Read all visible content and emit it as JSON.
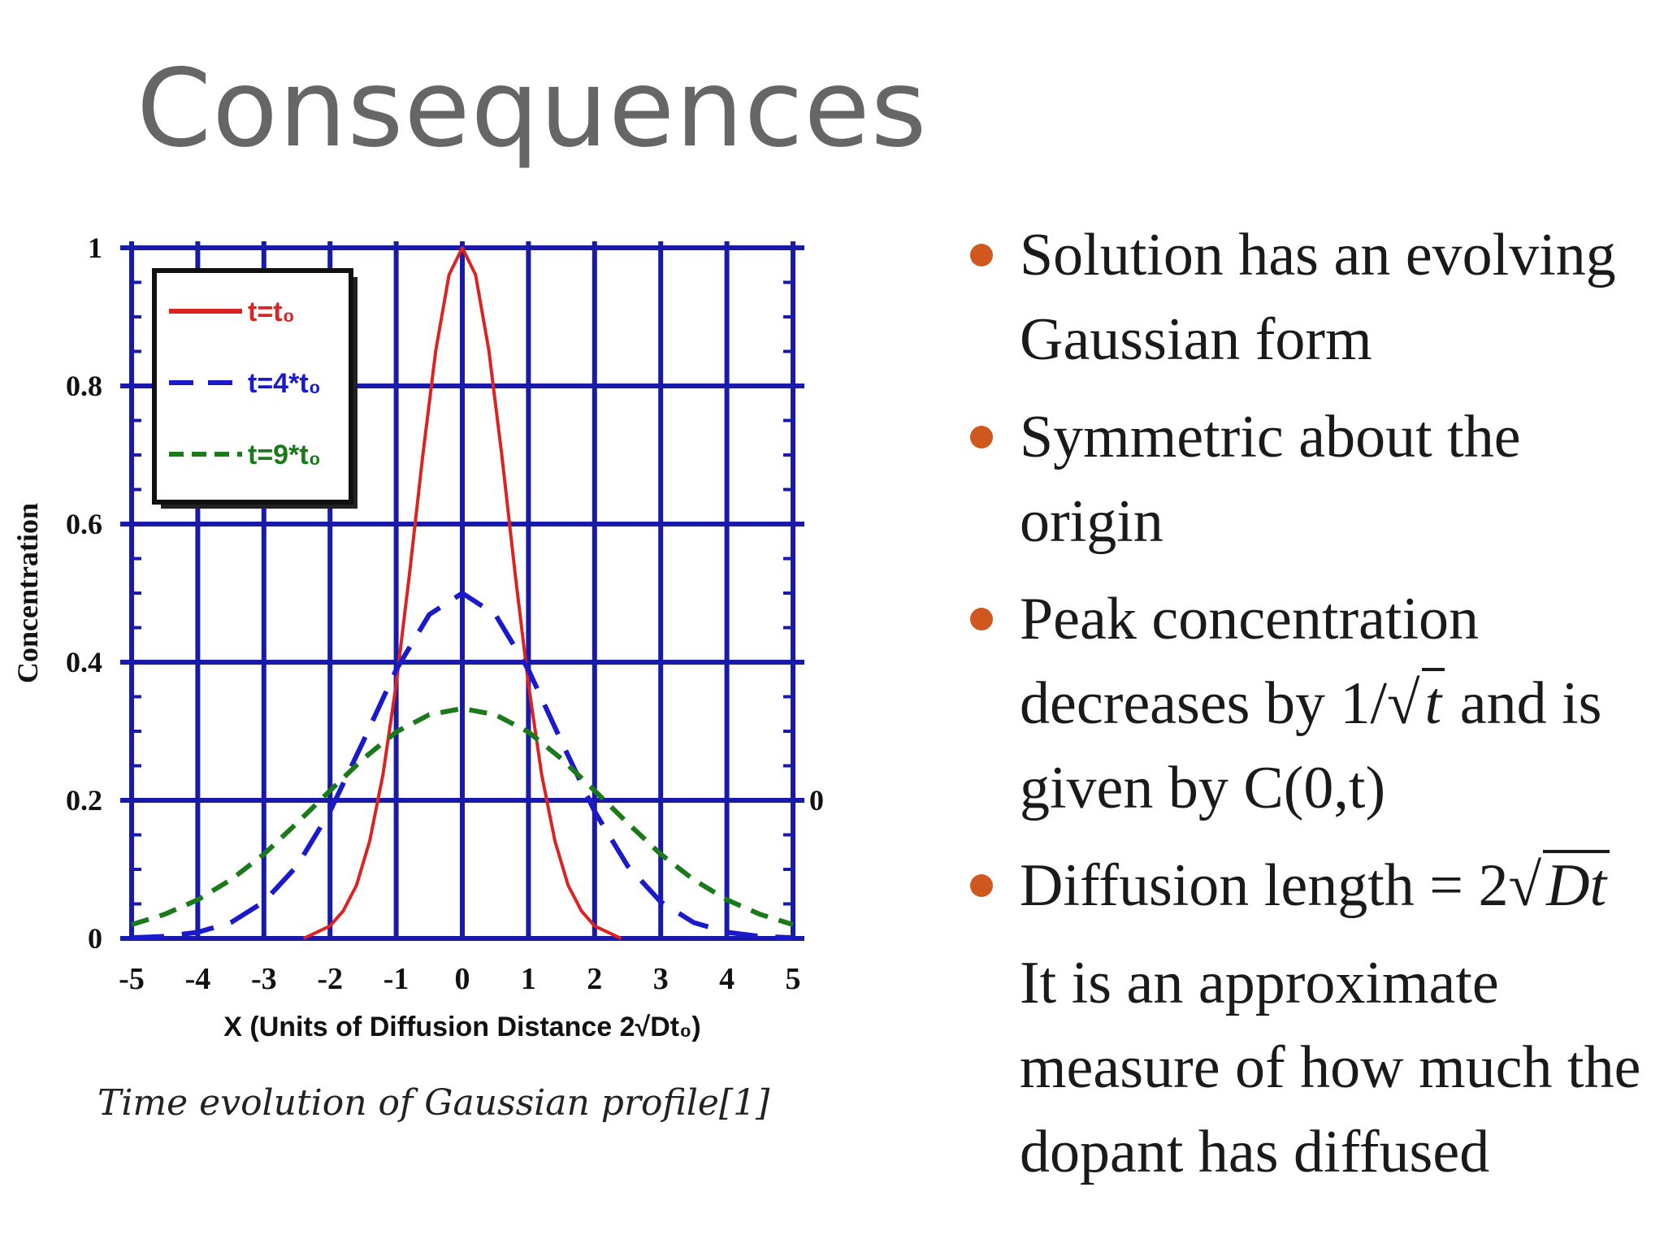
{
  "slide": {
    "title": "Consequences",
    "caption": "Time evolution of Gaussian profile[1]",
    "bullets": [
      {
        "text": "Solution has an evolving Gaussian form"
      },
      {
        "text": "Symmetric about the origin"
      },
      {
        "prefix": "Peak concentration decreases by ",
        "frac": "1/",
        "radicand": "t",
        "suffix": " and is given by C(0,t)"
      },
      {
        "prefix": "Diffusion length ",
        "eq": "= 2",
        "radicand": "Dt"
      }
    ],
    "note": "It is an approximate measure of how much the dopant has diffused",
    "bullet_color": "#d0581e"
  },
  "chart_data": {
    "type": "line",
    "xlabel": "X (Units of Diffusion Distance 2√Dt₀)",
    "ylabel": "Concentration",
    "xlim": [
      -5,
      5
    ],
    "ylim": [
      0,
      1
    ],
    "xticks": [
      "-5",
      "-4",
      "-3",
      "-2",
      "-1",
      "0",
      "1",
      "2",
      "3",
      "4",
      "5"
    ],
    "yticks": [
      "0",
      "0.2",
      "0.4",
      "0.6",
      "0.8",
      "1"
    ],
    "right_axis_label": "0",
    "grid": true,
    "grid_color": "#1a1aaa",
    "legend_position": "top-left",
    "series": [
      {
        "name": "t=t₀",
        "color": "#dd2222",
        "style": "solid",
        "x": [
          -2.4,
          -2.0,
          -1.8,
          -1.6,
          -1.4,
          -1.2,
          -1.0,
          -0.8,
          -0.6,
          -0.4,
          -0.2,
          0.0,
          0.2,
          0.4,
          0.6,
          0.8,
          1.0,
          1.2,
          1.4,
          1.6,
          1.8,
          2.0,
          2.4
        ],
        "values": [
          0.0,
          0.018,
          0.04,
          0.077,
          0.141,
          0.237,
          0.368,
          0.527,
          0.698,
          0.852,
          0.961,
          1.0,
          0.961,
          0.852,
          0.698,
          0.527,
          0.368,
          0.237,
          0.141,
          0.077,
          0.04,
          0.018,
          0.0
        ]
      },
      {
        "name": "t=4*t₀",
        "color": "#1a1acc",
        "style": "longdash",
        "x": [
          -5.0,
          -4.5,
          -4.0,
          -3.5,
          -3.0,
          -2.5,
          -2.0,
          -1.5,
          -1.0,
          -0.5,
          0.0,
          0.5,
          1.0,
          1.5,
          2.0,
          2.5,
          3.0,
          3.5,
          4.0,
          4.5,
          5.0
        ],
        "values": [
          0.001,
          0.003,
          0.009,
          0.023,
          0.053,
          0.105,
          0.184,
          0.285,
          0.389,
          0.469,
          0.5,
          0.469,
          0.389,
          0.285,
          0.184,
          0.105,
          0.053,
          0.023,
          0.009,
          0.003,
          0.001
        ]
      },
      {
        "name": "t=9*t₀",
        "color": "#1a7a1a",
        "style": "dash",
        "x": [
          -5.0,
          -4.5,
          -4.0,
          -3.5,
          -3.0,
          -2.5,
          -2.0,
          -1.5,
          -1.0,
          -0.5,
          0.0,
          0.5,
          1.0,
          1.5,
          2.0,
          2.5,
          3.0,
          3.5,
          4.0,
          4.5,
          5.0
        ],
        "values": [
          0.02,
          0.035,
          0.056,
          0.085,
          0.122,
          0.167,
          0.214,
          0.26,
          0.299,
          0.324,
          0.333,
          0.324,
          0.299,
          0.26,
          0.214,
          0.167,
          0.122,
          0.085,
          0.056,
          0.035,
          0.02
        ]
      }
    ]
  }
}
